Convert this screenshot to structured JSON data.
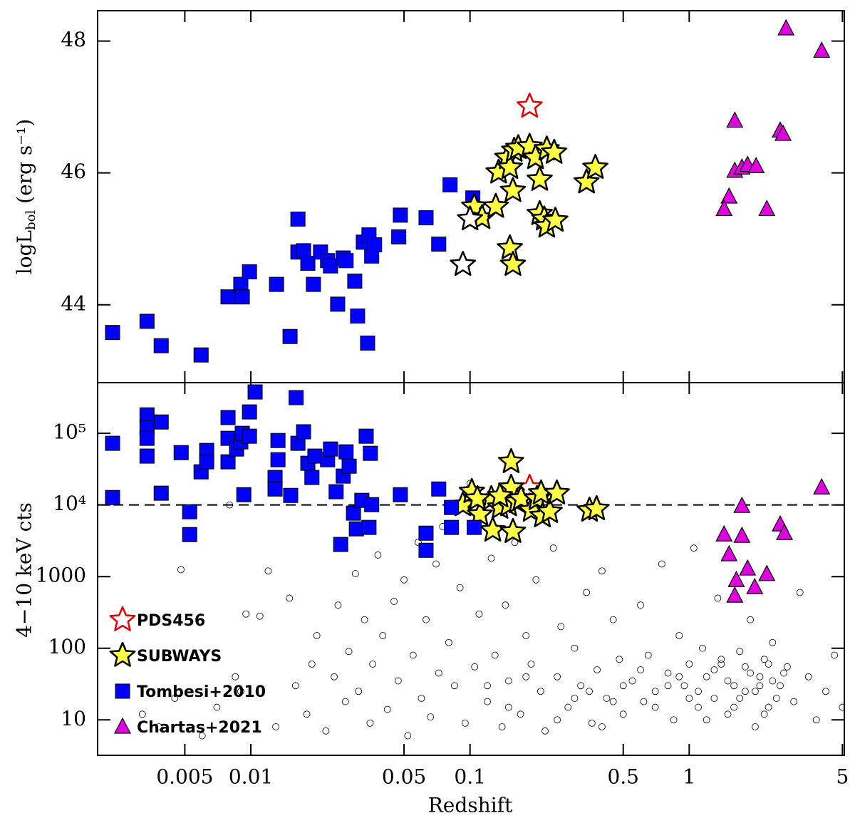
{
  "chart_data": [
    {
      "type": "scatter",
      "xlog": true,
      "xlim": [
        0.002,
        5.1
      ],
      "xticks": [
        0.005,
        0.01,
        0.05,
        0.1,
        0.5,
        1,
        5
      ],
      "ylim": [
        42.82,
        48.46
      ],
      "yticks": [
        44,
        46,
        48
      ],
      "ylabel": "logL",
      "ylabel_sub": "bol",
      "ylabel_rest": " (erg s⁻¹)",
      "series": [
        {
          "marker": "square",
          "color": "#0000ff",
          "edgecolor": "#000000",
          "x": [
            0.00234,
            0.00336,
            0.0039,
            0.00593,
            0.00787,
            0.009,
            0.00914,
            0.00986,
            0.0131,
            0.0151,
            0.0164,
            0.0164,
            0.0174,
            0.0182,
            0.0193,
            0.0208,
            0.0224,
            0.0231,
            0.0249,
            0.0264,
            0.0272,
            0.0298,
            0.0307,
            0.0326,
            0.0341,
            0.0346,
            0.0356,
            0.0367,
            0.0473,
            0.0481,
            0.063,
            0.072,
            0.0811,
            0.103
          ],
          "values": [
            43.58,
            43.75,
            43.38,
            43.24,
            44.12,
            44.31,
            44.12,
            44.5,
            44.31,
            43.52,
            45.3,
            44.8,
            44.82,
            44.63,
            44.31,
            44.8,
            44.67,
            44.59,
            44.01,
            44.71,
            44.67,
            44.36,
            43.83,
            44.95,
            43.42,
            45.06,
            44.74,
            44.91,
            45.03,
            45.36,
            45.32,
            44.92,
            45.82,
            45.62
          ]
        },
        {
          "marker": "star",
          "color": "#ffff44",
          "edgecolor": "#000000",
          "x": [
            0.1045,
            0.1135,
            0.131,
            0.135,
            0.148,
            0.152,
            0.159,
            0.166,
            0.157,
            0.187,
            0.199,
            0.208,
            0.224,
            0.242,
            0.208,
            0.218,
            0.224,
            0.245,
            0.152,
            0.157,
            0.34,
            0.373
          ],
          "values": [
            45.49,
            45.32,
            45.49,
            46.01,
            46.23,
            46.08,
            46.34,
            46.38,
            45.73,
            46.4,
            46.23,
            45.9,
            46.36,
            46.31,
            45.38,
            45.3,
            45.19,
            45.28,
            44.86,
            44.61,
            45.86,
            46.08
          ]
        },
        {
          "marker": "star",
          "color": "#ffffff",
          "edgecolor": "#000000",
          "x": [
            0.1,
            0.0928
          ],
          "values": [
            45.3,
            44.61
          ]
        },
        {
          "marker": "star",
          "color": "none",
          "edgecolor": "#e00000",
          "x": [
            0.187
          ],
          "values": [
            47.01
          ]
        },
        {
          "marker": "triangle",
          "color": "#e000e0",
          "edgecolor": "#000000",
          "x": [
            2.765,
            4.02,
            1.614,
            1.52,
            1.442,
            1.614,
            1.74,
            1.846,
            2.02,
            2.26,
            2.6,
            2.68
          ],
          "values": [
            48.19,
            47.85,
            46.79,
            45.64,
            45.45,
            46.03,
            46.08,
            46.12,
            46.1,
            45.45,
            46.64,
            46.59
          ]
        }
      ]
    },
    {
      "type": "scatter",
      "xlog": true,
      "ylog": true,
      "xlim": [
        0.002,
        5.1
      ],
      "xticks": [
        0.005,
        0.01,
        0.05,
        0.1,
        0.5,
        1,
        5
      ],
      "ylim": [
        3.2,
        510000
      ],
      "yticks": [
        10,
        100,
        1000,
        {
          "value": 10000,
          "label": "10⁴"
        },
        {
          "value": 100000,
          "label": "10⁵"
        }
      ],
      "xlabel": "Redshift",
      "ylabel": "4−10 keV cts",
      "reference_line": 10000,
      "legend": "lower left",
      "series": [
        {
          "marker": "circle",
          "color": "none",
          "edgecolor": "#000000",
          "x": [
            0.0032,
            0.0038,
            0.0045,
            0.0048,
            0.006,
            0.007,
            0.008,
            0.0085,
            0.009,
            0.0095,
            0.011,
            0.012,
            0.013,
            0.015,
            0.016,
            0.018,
            0.019,
            0.02,
            0.022,
            0.024,
            0.025,
            0.027,
            0.028,
            0.03,
            0.031,
            0.033,
            0.035,
            0.036,
            0.038,
            0.04,
            0.042,
            0.045,
            0.047,
            0.05,
            0.052,
            0.055,
            0.058,
            0.06,
            0.063,
            0.066,
            0.07,
            0.072,
            0.075,
            0.08,
            0.085,
            0.09,
            0.095,
            0.1,
            0.105,
            0.11,
            0.12,
            0.125,
            0.13,
            0.14,
            0.145,
            0.15,
            0.16,
            0.17,
            0.18,
            0.19,
            0.2,
            0.21,
            0.22,
            0.24,
            0.25,
            0.26,
            0.28,
            0.3,
            0.32,
            0.34,
            0.36,
            0.38,
            0.4,
            0.42,
            0.45,
            0.48,
            0.5,
            0.55,
            0.6,
            0.62,
            0.65,
            0.7,
            0.75,
            0.8,
            0.85,
            0.9,
            0.95,
            1.0,
            1.05,
            1.1,
            1.15,
            1.2,
            1.3,
            1.35,
            1.4,
            1.5,
            1.6,
            1.7,
            1.8,
            1.9,
            2.0,
            2.1,
            2.2,
            2.3,
            2.4,
            2.6,
            2.8,
            3.0,
            3.2,
            3.5,
            3.8,
            4.2,
            4.6,
            5.0,
            0.3,
            0.5,
            0.7,
            0.9,
            1.1,
            1.3,
            1.5,
            1.7,
            1.9,
            2.1,
            2.3,
            2.5,
            0.25,
            0.4,
            0.6,
            0.8,
            1.2,
            1.4,
            1.6,
            1.8,
            2.0,
            2.2,
            2.4,
            2.7,
            1.0,
            0.35,
            0.15,
            0.18,
            0.12,
            0.45
          ],
          "values": [
            12,
            8,
            20,
            1250,
            6,
            15,
            10000,
            40,
            25,
            300,
            280,
            1200,
            8,
            500,
            30,
            12,
            60,
            150,
            7,
            40,
            400,
            18,
            90,
            1100,
            25,
            250,
            9,
            60,
            2000,
            150,
            14,
            450,
            35,
            900,
            6,
            80,
            3000,
            20,
            250,
            11,
            1500,
            45,
            5000,
            120,
            30,
            700,
            9,
            20000,
            55,
            300,
            18,
            1800,
            80,
            8,
            400,
            35,
            3000,
            12,
            150,
            60,
            900,
            25,
            7,
            2500,
            40,
            200,
            15,
            100,
            30,
            600,
            9,
            50,
            1200,
            20,
            250,
            70,
            12,
            35,
            400,
            18,
            80,
            25,
            1500,
            45,
            10,
            150,
            30,
            60,
            2500,
            15,
            100,
            40,
            20,
            500,
            60,
            12,
            30,
            90,
            25,
            250,
            8,
            40,
            70,
            15,
            120,
            30,
            55,
            18,
            600,
            40,
            10,
            25,
            80,
            15,
            20,
            30,
            15,
            40,
            25,
            50,
            35,
            20,
            45,
            30,
            60,
            20,
            10,
            8,
            50,
            30,
            10,
            70,
            15,
            55,
            25,
            12,
            35,
            45,
            20,
            25,
            15,
            40,
            30,
            18
          ]
        },
        {
          "name": "PDS456",
          "label_color": "#e00000",
          "marker": "star",
          "color": "none",
          "edgecolor": "#e00000",
          "x": [
            0.187
          ],
          "values": [
            17500
          ]
        },
        {
          "name": "SUBWAYS",
          "label_color": "#000000",
          "marker": "star",
          "color": "#ffff44",
          "edgecolor": "#000000",
          "x": [
            0.0928,
            0.1019,
            0.111,
            0.125,
            0.127,
            0.137,
            0.15,
            0.154,
            0.154,
            0.157,
            0.164,
            0.171,
            0.19,
            0.202,
            0.211,
            0.214,
            0.231,
            0.249,
            0.351,
            0.378,
            0.108,
            0.137
          ],
          "values": [
            10000,
            15300,
            7350,
            12200,
            4430,
            9230,
            10000,
            40000,
            17500,
            4240,
            11100,
            12200,
            8410,
            12200,
            14600,
            7020,
            8040,
            14600,
            8410,
            8810,
            12200,
            13300
          ]
        },
        {
          "name": "Tombesi+2010",
          "label_color": "#0000ff",
          "marker": "square",
          "color": "#0000ff",
          "edgecolor": "#000000",
          "x": [
            0.00234,
            0.00234,
            0.00336,
            0.00336,
            0.00336,
            0.00336,
            0.0039,
            0.0039,
            0.00481,
            0.00526,
            0.00526,
            0.00593,
            0.00629,
            0.00629,
            0.00787,
            0.00787,
            0.00787,
            0.00861,
            0.009,
            0.00914,
            0.00929,
            0.00986,
            0.00986,
            0.01046,
            0.0133,
            0.0133,
            0.0129,
            0.0129,
            0.0152,
            0.0161,
            0.0164,
            0.0174,
            0.0182,
            0.019,
            0.0196,
            0.0224,
            0.0231,
            0.0245,
            0.0257,
            0.0264,
            0.0272,
            0.0281,
            0.0294,
            0.0303,
            0.0321,
            0.0336,
            0.0346,
            0.0351,
            0.0356,
            0.0481,
            0.063,
            0.063,
            0.072,
            0.0823,
            0.0823,
            0.1045
          ],
          "values": [
            72600,
            12700,
            181000,
            120000,
            85200,
            48100,
            144000,
            14600,
            53800,
            8040,
            3860,
            29000,
            57700,
            40000,
            166000,
            85200,
            40000,
            60400,
            76000,
            100000,
            13900,
            199000,
            91200,
            378000,
            79400,
            42800,
            24200,
            16700,
            13600,
            315000,
            72600,
            105000,
            38200,
            24200,
            48100,
            42800,
            60400,
            15300,
            2810,
            25300,
            55100,
            34800,
            7690,
            4640,
            11600,
            91200,
            4860,
            52600,
            10100,
            13900,
            4040,
            2330,
            16700,
            4860,
            9230,
            4860
          ]
        },
        {
          "name": "Chartas+2021",
          "label_color": "#e000e0",
          "marker": "triangle",
          "color": "#e000e0",
          "edgecolor": "#000000",
          "x": [
            4.02,
            1.74,
            1.442,
            1.74,
            1.52,
            1.846,
            2.26,
            1.64,
            1.614,
            1.99,
            2.6,
            2.72
          ],
          "values": [
            17500,
            9660,
            3860,
            3690,
            2040,
            1290,
            1080,
            890,
            540,
            710,
            5330,
            4040
          ]
        }
      ]
    }
  ]
}
